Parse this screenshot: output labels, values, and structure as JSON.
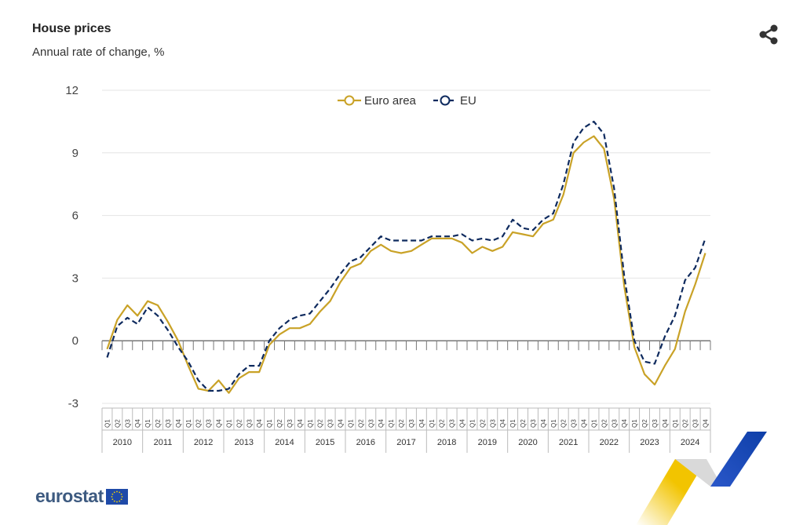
{
  "header": {
    "title": "House prices",
    "subtitle": "Annual rate of change, %"
  },
  "logo": {
    "text": "eurostat"
  },
  "colors": {
    "euro_area": "#c9a227",
    "eu": "#0e2a5e",
    "grid": "#e4e4e4",
    "axis": "#777777"
  },
  "chart_data": {
    "type": "line",
    "title": "House prices",
    "subtitle": "Annual rate of change, %",
    "ylim": [
      -3,
      12
    ],
    "yticks": [
      "-3",
      "0",
      "3",
      "6",
      "9",
      "12"
    ],
    "quarters": [
      "Q1",
      "Q2",
      "Q3",
      "Q4"
    ],
    "years": [
      "2010",
      "2011",
      "2012",
      "2013",
      "2014",
      "2015",
      "2016",
      "2017",
      "2018",
      "2019",
      "2020",
      "2021",
      "2022",
      "2023",
      "2024"
    ],
    "legend": {
      "position": "top-center"
    },
    "series": [
      {
        "name": "Euro area",
        "style": "solid",
        "values": [
          -0.4,
          1.0,
          1.7,
          1.2,
          1.9,
          1.7,
          0.9,
          0.0,
          -1.2,
          -2.3,
          -2.4,
          -1.9,
          -2.5,
          -1.8,
          -1.5,
          -1.5,
          -0.2,
          0.3,
          0.6,
          0.6,
          0.8,
          1.4,
          1.9,
          2.8,
          3.5,
          3.7,
          4.3,
          4.6,
          4.3,
          4.2,
          4.3,
          4.6,
          4.9,
          4.9,
          4.9,
          4.7,
          4.2,
          4.5,
          4.3,
          4.5,
          5.2,
          5.1,
          5.0,
          5.6,
          5.8,
          7.0,
          9.0,
          9.5,
          9.8,
          9.2,
          6.8,
          2.6,
          -0.3,
          -1.6,
          -2.1,
          -1.2,
          -0.4,
          1.4,
          2.7,
          4.2
        ]
      },
      {
        "name": "EU",
        "style": "dashed",
        "values": [
          -0.8,
          0.7,
          1.1,
          0.8,
          1.6,
          1.2,
          0.5,
          -0.3,
          -1.0,
          -1.9,
          -2.4,
          -2.4,
          -2.3,
          -1.6,
          -1.2,
          -1.2,
          0.0,
          0.6,
          1.0,
          1.2,
          1.3,
          1.9,
          2.5,
          3.2,
          3.8,
          4.0,
          4.5,
          5.0,
          4.8,
          4.8,
          4.8,
          4.8,
          5.0,
          5.0,
          5.0,
          5.1,
          4.8,
          4.9,
          4.8,
          5.0,
          5.8,
          5.4,
          5.3,
          5.8,
          6.1,
          7.5,
          9.5,
          10.2,
          10.5,
          9.9,
          7.3,
          3.1,
          0.0,
          -1.0,
          -1.1,
          0.2,
          1.2,
          2.9,
          3.5,
          4.9
        ]
      }
    ]
  }
}
